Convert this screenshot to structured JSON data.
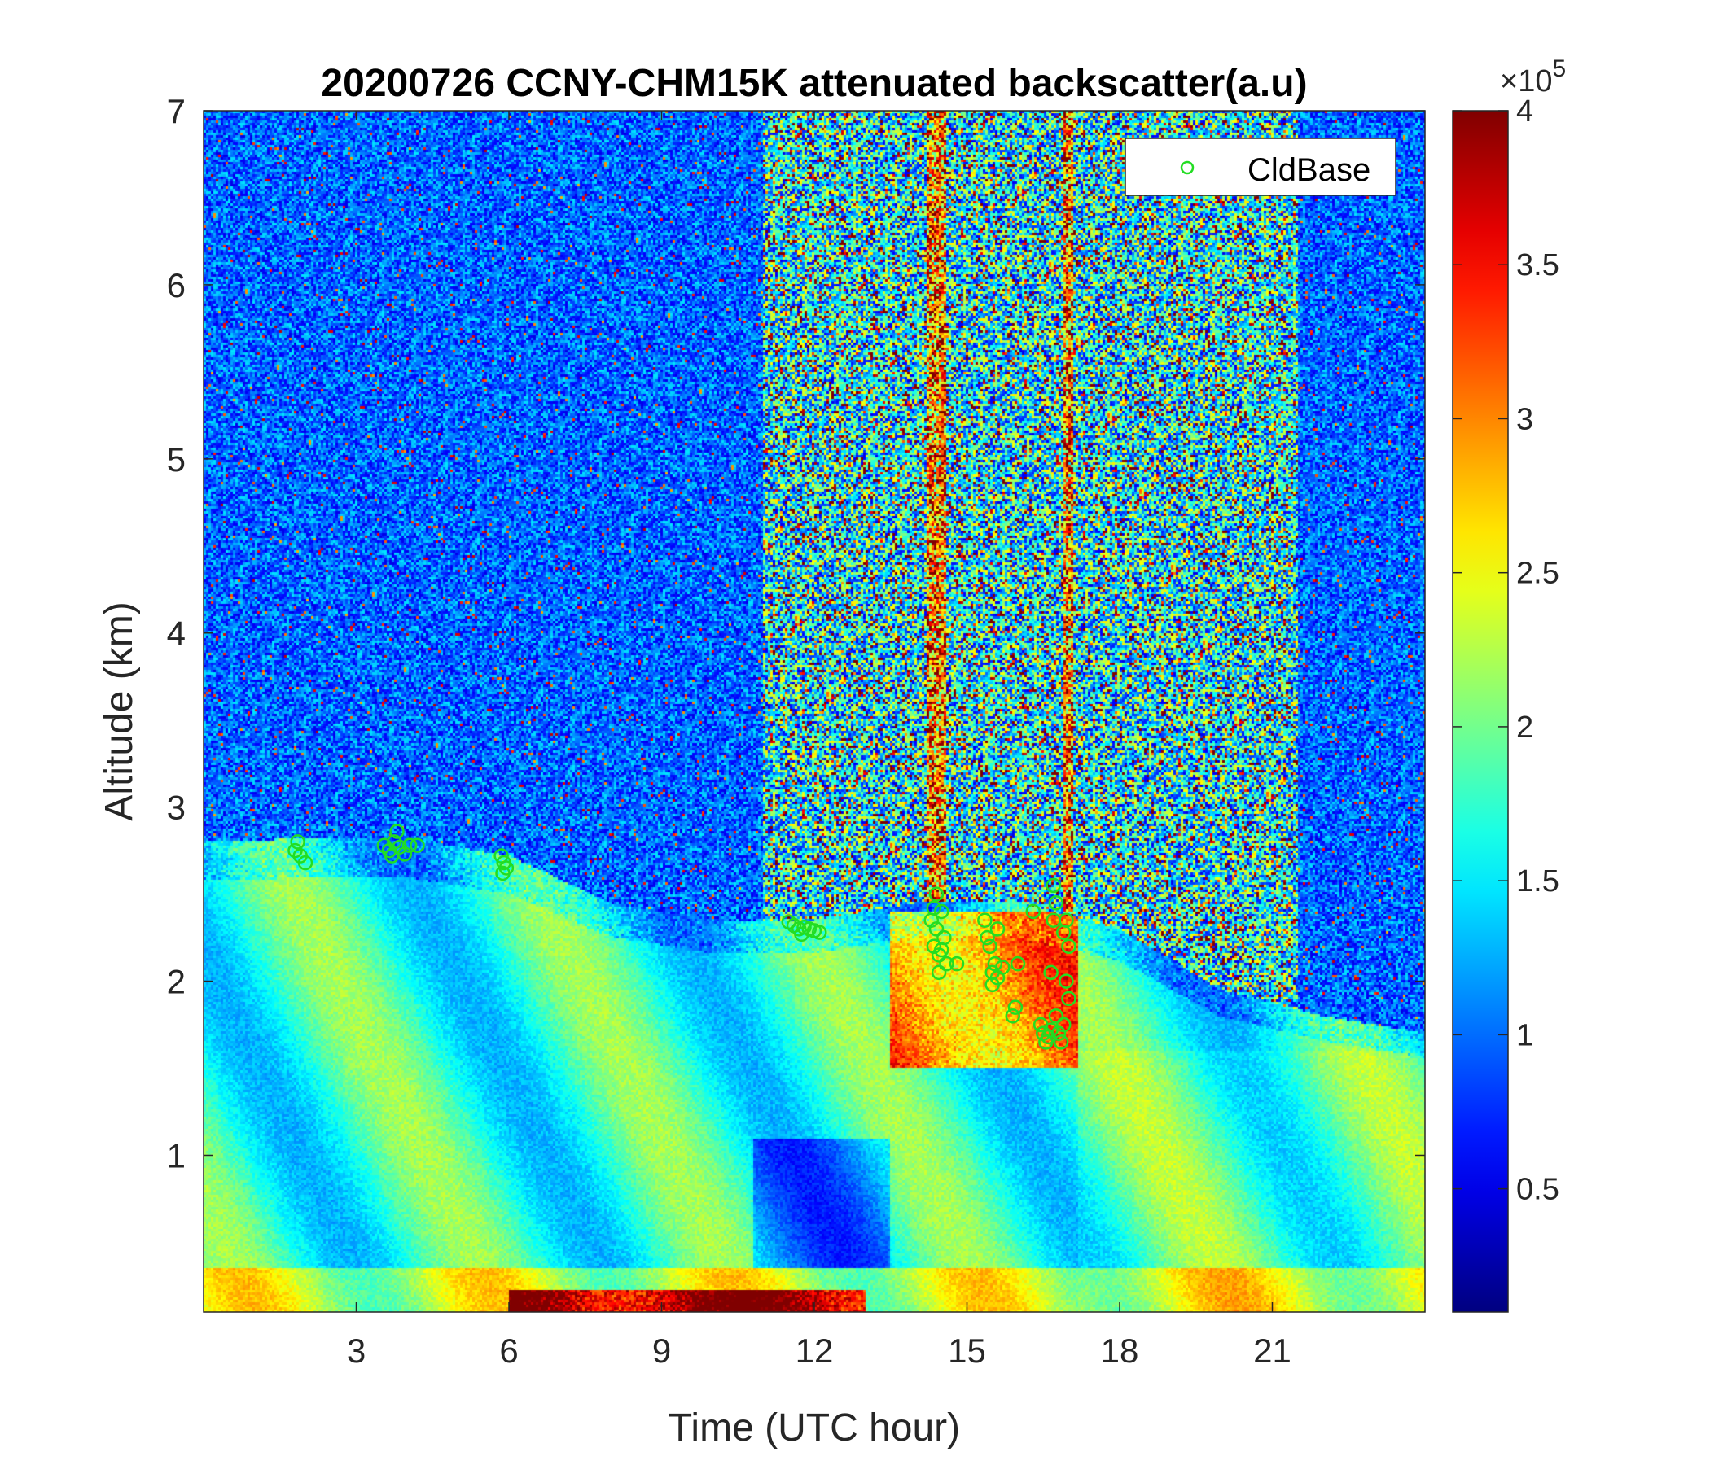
{
  "chart_data": {
    "type": "heatmap",
    "title": "20200726 CCNY-CHM15K attenuated backscatter(a.u)",
    "xlabel": "Time (UTC hour)",
    "ylabel": "Altitude (km)",
    "xlim": [
      0,
      24
    ],
    "ylim": [
      0.1,
      7
    ],
    "x_ticks": [
      3,
      6,
      9,
      12,
      15,
      18,
      21
    ],
    "x_tick_labels": [
      "3",
      "6",
      "9",
      "12",
      "15",
      "18",
      "21"
    ],
    "y_ticks": [
      1,
      2,
      3,
      4,
      5,
      6,
      7
    ],
    "y_tick_labels": [
      "1",
      "2",
      "3",
      "4",
      "5",
      "6",
      "7"
    ],
    "colorbar": {
      "colormap": "jet",
      "range": [
        10000,
        400000
      ],
      "ticks": [
        50000,
        100000,
        150000,
        200000,
        250000,
        300000,
        350000,
        400000
      ],
      "tick_labels": [
        "0.5",
        "1",
        "1.5",
        "2",
        "2.5",
        "3",
        "3.5",
        "4"
      ],
      "exponent_label": "×10",
      "exponent_power": "5"
    },
    "legend": {
      "position": "top-right",
      "entries": [
        {
          "name": "CldBase",
          "marker": "circle",
          "color": "#22dd22"
        }
      ]
    },
    "series": [
      {
        "name": "CldBase",
        "type": "scatter",
        "color": "#22dd22",
        "points": [
          [
            1.8,
            2.75
          ],
          [
            1.9,
            2.72
          ],
          [
            2.0,
            2.68
          ],
          [
            1.85,
            2.8
          ],
          [
            3.55,
            2.78
          ],
          [
            3.65,
            2.75
          ],
          [
            3.75,
            2.8
          ],
          [
            3.85,
            2.77
          ],
          [
            3.95,
            2.73
          ],
          [
            4.05,
            2.78
          ],
          [
            4.2,
            2.78
          ],
          [
            3.8,
            2.86
          ],
          [
            3.7,
            2.72
          ],
          [
            5.85,
            2.72
          ],
          [
            5.9,
            2.68
          ],
          [
            5.95,
            2.65
          ],
          [
            5.88,
            2.62
          ],
          [
            11.5,
            2.34
          ],
          [
            11.6,
            2.32
          ],
          [
            11.7,
            2.3
          ],
          [
            11.8,
            2.31
          ],
          [
            11.9,
            2.3
          ],
          [
            12.0,
            2.29
          ],
          [
            12.1,
            2.28
          ],
          [
            11.75,
            2.27
          ],
          [
            14.3,
            2.35
          ],
          [
            14.35,
            2.2
          ],
          [
            14.4,
            2.3
          ],
          [
            14.45,
            2.15
          ],
          [
            14.5,
            2.4
          ],
          [
            14.55,
            2.25
          ],
          [
            14.4,
            2.5
          ],
          [
            14.6,
            2.1
          ],
          [
            14.45,
            2.05
          ],
          [
            14.35,
            2.42
          ],
          [
            14.5,
            2.18
          ],
          [
            14.8,
            2.1
          ],
          [
            15.35,
            2.35
          ],
          [
            15.4,
            2.25
          ],
          [
            15.45,
            2.2
          ],
          [
            15.5,
            2.05
          ],
          [
            15.55,
            2.1
          ],
          [
            15.6,
            2.02
          ],
          [
            15.7,
            2.08
          ],
          [
            15.6,
            2.3
          ],
          [
            15.5,
            1.98
          ],
          [
            15.9,
            1.8
          ],
          [
            15.95,
            1.85
          ],
          [
            16.0,
            2.1
          ],
          [
            16.3,
            2.4
          ],
          [
            16.45,
            1.75
          ],
          [
            16.5,
            1.7
          ],
          [
            16.55,
            1.65
          ],
          [
            16.6,
            1.68
          ],
          [
            16.65,
            1.72
          ],
          [
            16.7,
            2.55
          ],
          [
            16.7,
            2.35
          ],
          [
            16.75,
            1.8
          ],
          [
            16.8,
            1.7
          ],
          [
            16.85,
            1.65
          ],
          [
            16.9,
            1.75
          ],
          [
            16.65,
            2.05
          ],
          [
            16.95,
            2.35
          ],
          [
            17.0,
            2.2
          ],
          [
            16.95,
            2.0
          ],
          [
            17.0,
            1.9
          ],
          [
            16.75,
            2.45
          ],
          [
            16.9,
            2.28
          ]
        ]
      }
    ],
    "field_description_points": {
      "cloud_layer_top_km": [
        [
          0,
          2.8
        ],
        [
          2,
          2.82
        ],
        [
          4,
          2.82
        ],
        [
          6,
          2.72
        ],
        [
          8,
          2.45
        ],
        [
          10,
          2.35
        ],
        [
          12,
          2.35
        ],
        [
          14,
          2.45
        ],
        [
          16,
          2.45
        ],
        [
          18,
          2.3
        ],
        [
          20,
          1.95
        ],
        [
          22,
          1.8
        ],
        [
          24,
          1.7
        ]
      ]
    }
  }
}
